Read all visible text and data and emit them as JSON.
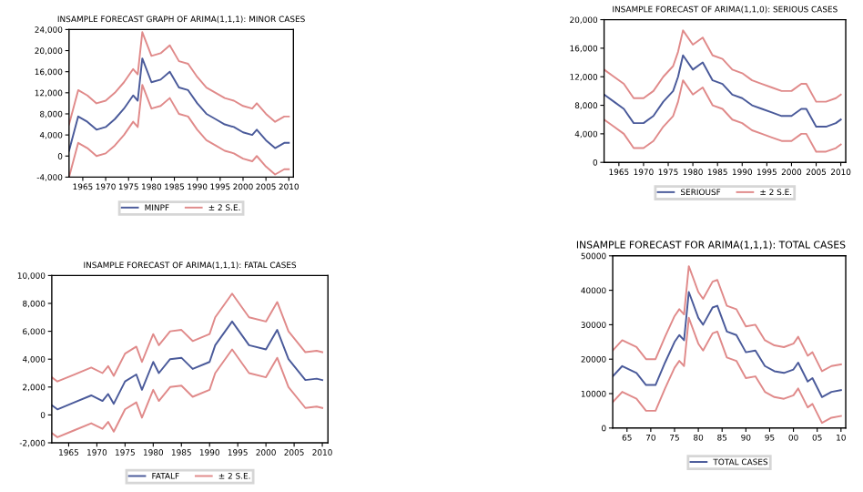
{
  "chart_data": [
    {
      "type": "line",
      "title": "INSAMPLE FORECAST GRAPH OF ARIMA(1,1,1): MINOR CASES",
      "x": [
        1962,
        1964,
        1966,
        1968,
        1970,
        1972,
        1974,
        1976,
        1977,
        1978,
        1980,
        1982,
        1984,
        1986,
        1988,
        1990,
        1992,
        1994,
        1996,
        1998,
        2000,
        2002,
        2003,
        2005,
        2007,
        2009,
        2010
      ],
      "series": [
        {
          "name": "MINPF",
          "color": "#4a5a9a",
          "values": [
            1000,
            7500,
            6500,
            5000,
            5500,
            7000,
            9000,
            11500,
            10500,
            18500,
            14000,
            14500,
            16000,
            13000,
            12500,
            10000,
            8000,
            7000,
            6000,
            5500,
            4500,
            4000,
            5000,
            3000,
            1500,
            2500,
            2500
          ]
        },
        {
          "name": "± 2 S.E.",
          "color": "#e08a8a",
          "values": [
            6000,
            12500,
            11500,
            10000,
            10500,
            12000,
            14000,
            16500,
            15500,
            23500,
            19000,
            19500,
            21000,
            18000,
            17500,
            15000,
            13000,
            12000,
            11000,
            10500,
            9500,
            9000,
            10000,
            8000,
            6500,
            7500,
            7500
          ]
        },
        {
          "color": "#e08a8a",
          "values": [
            -4000,
            2500,
            1500,
            0,
            500,
            2000,
            4000,
            6500,
            5500,
            13500,
            9000,
            9500,
            11000,
            8000,
            7500,
            5000,
            3000,
            2000,
            1000,
            500,
            -500,
            -1000,
            0,
            -2000,
            -3500,
            -2500,
            -2500
          ]
        }
      ],
      "xlim": [
        1962,
        2011
      ],
      "xticks": [
        1965,
        1970,
        1975,
        1980,
        1985,
        1990,
        1995,
        2000,
        2005,
        2010
      ],
      "ylim": [
        -4000,
        24000
      ],
      "yticks": [
        {
          "value": -4000,
          "label": "-4,000"
        },
        0,
        {
          "value": 4000,
          "label": "4,000"
        },
        {
          "value": 8000,
          "label": "8,000"
        },
        {
          "value": 12000,
          "label": "12,000"
        },
        {
          "value": 16000,
          "label": "16,000"
        },
        {
          "value": 20000,
          "label": "20,000"
        },
        {
          "value": 24000,
          "label": "24,000"
        }
      ],
      "legend": "bottom",
      "grid": false
    },
    {
      "type": "line",
      "title": "INSAMPLE FORECAST OF ARIMA(1,1,0): SERIOUS CASES",
      "x": [
        1962,
        1964,
        1966,
        1968,
        1970,
        1972,
        1974,
        1976,
        1977,
        1978,
        1980,
        1982,
        1984,
        1986,
        1988,
        1990,
        1992,
        1994,
        1996,
        1998,
        2000,
        2002,
        2003,
        2005,
        2007,
        2009,
        2010
      ],
      "series": [
        {
          "name": "SERIOUSF",
          "color": "#4a5a9a",
          "values": [
            9500,
            8500,
            7500,
            5500,
            5500,
            6500,
            8500,
            10000,
            12000,
            15000,
            13000,
            14000,
            11500,
            11000,
            9500,
            9000,
            8000,
            7500,
            7000,
            6500,
            6500,
            7500,
            7500,
            5000,
            5000,
            5500,
            6000
          ]
        },
        {
          "name": "± 2 S.E.",
          "color": "#e08a8a",
          "values": [
            13000,
            12000,
            11000,
            9000,
            9000,
            10000,
            12000,
            13500,
            15500,
            18500,
            16500,
            17500,
            15000,
            14500,
            13000,
            12500,
            11500,
            11000,
            10500,
            10000,
            10000,
            11000,
            11000,
            8500,
            8500,
            9000,
            9500
          ]
        },
        {
          "color": "#e08a8a",
          "values": [
            6000,
            5000,
            4000,
            2000,
            2000,
            3000,
            5000,
            6500,
            8500,
            11500,
            9500,
            10500,
            8000,
            7500,
            6000,
            5500,
            4500,
            4000,
            3500,
            3000,
            3000,
            4000,
            4000,
            1500,
            1500,
            2000,
            2500
          ]
        }
      ],
      "xlim": [
        1962,
        2011
      ],
      "xticks": [
        1965,
        1970,
        1975,
        1980,
        1985,
        1990,
        1995,
        2000,
        2005,
        2010
      ],
      "ylim": [
        0,
        20000
      ],
      "yticks": [
        0,
        {
          "value": 4000,
          "label": "4,000"
        },
        {
          "value": 8000,
          "label": "8,000"
        },
        {
          "value": 12000,
          "label": "12,000"
        },
        {
          "value": 16000,
          "label": "16,000"
        },
        {
          "value": 20000,
          "label": "20,000"
        }
      ],
      "legend": "bottom",
      "grid": false
    },
    {
      "type": "line",
      "title": "INSAMPLE FORECAST OF ARIMA(1,1,1): FATAL CASES",
      "x": [
        1962,
        1963,
        1966,
        1969,
        1971,
        1972,
        1973,
        1975,
        1977,
        1978,
        1980,
        1981,
        1983,
        1985,
        1987,
        1990,
        1991,
        1994,
        1997,
        2000,
        2002,
        2004,
        2007,
        2009,
        2010
      ],
      "series": [
        {
          "name": "FATALF",
          "color": "#4a5a9a",
          "values": [
            700,
            400,
            900,
            1400,
            1000,
            1500,
            800,
            2400,
            2900,
            1800,
            3800,
            3000,
            4000,
            4100,
            3300,
            3800,
            5000,
            6700,
            5000,
            4700,
            6100,
            4000,
            2500,
            2600,
            2500
          ]
        },
        {
          "name": "± 2 S.E.",
          "color": "#e08a8a",
          "values": [
            2700,
            2400,
            2900,
            3400,
            3000,
            3500,
            2800,
            4400,
            4900,
            3800,
            5800,
            5000,
            6000,
            6100,
            5300,
            5800,
            7000,
            8700,
            7000,
            6700,
            8100,
            6000,
            4500,
            4600,
            4500
          ]
        },
        {
          "color": "#e08a8a",
          "values": [
            -1300,
            -1600,
            -1100,
            -600,
            -1000,
            -500,
            -1200,
            400,
            900,
            -200,
            1800,
            1000,
            2000,
            2100,
            1300,
            1800,
            3000,
            4700,
            3000,
            2700,
            4100,
            2000,
            500,
            600,
            500
          ]
        }
      ],
      "xlim": [
        1962,
        2011
      ],
      "xticks": [
        1965,
        1970,
        1975,
        1980,
        1985,
        1990,
        1995,
        2000,
        2005,
        2010
      ],
      "ylim": [
        -2000,
        10000
      ],
      "yticks": [
        {
          "value": -2000,
          "label": "-2,000"
        },
        0,
        {
          "value": 2000,
          "label": "2,000"
        },
        {
          "value": 4000,
          "label": "4,000"
        },
        {
          "value": 6000,
          "label": "6,000"
        },
        {
          "value": 8000,
          "label": "8,000"
        },
        {
          "value": 10000,
          "label": "10,000"
        }
      ],
      "legend": "bottom",
      "grid": false
    },
    {
      "type": "line",
      "title": "INSAMPLE FORECAST FOR ARIMA(1,1,1): TOTAL CASES",
      "x": [
        1962,
        1964,
        1967,
        1969,
        1971,
        1973,
        1975,
        1976,
        1977,
        1978,
        1980,
        1981,
        1983,
        1984,
        1986,
        1988,
        1990,
        1992,
        1994,
        1996,
        1998,
        2000,
        2001,
        2003,
        2004,
        2006,
        2008,
        2010
      ],
      "series": [
        {
          "name": "TOTAL CASES",
          "color": "#4a5a9a",
          "values": [
            15000,
            18000,
            16000,
            12500,
            12500,
            19000,
            25000,
            27000,
            25500,
            39500,
            32000,
            30000,
            35000,
            35500,
            28000,
            27000,
            22000,
            22500,
            18000,
            16500,
            16000,
            17000,
            19000,
            13500,
            14500,
            9000,
            10500,
            11000
          ]
        },
        {
          "color": "#e08a8a",
          "values": [
            22500,
            25500,
            23500,
            20000,
            20000,
            26500,
            32500,
            34500,
            33000,
            47000,
            39500,
            37500,
            42500,
            43000,
            35500,
            34500,
            29500,
            30000,
            25500,
            24000,
            23500,
            24500,
            26500,
            21000,
            22000,
            16500,
            18000,
            18500
          ]
        },
        {
          "color": "#e08a8a",
          "values": [
            7500,
            10500,
            8500,
            5000,
            5000,
            11500,
            17500,
            19500,
            18000,
            32000,
            24500,
            22500,
            27500,
            28000,
            20500,
            19500,
            14500,
            15000,
            10500,
            9000,
            8500,
            9500,
            11500,
            6000,
            7000,
            1500,
            3000,
            3500
          ]
        }
      ],
      "xlim": [
        1962,
        2011
      ],
      "xticks": [
        {
          "value": 1965,
          "label": "65"
        },
        {
          "value": 1970,
          "label": "70"
        },
        {
          "value": 1975,
          "label": "75"
        },
        {
          "value": 1980,
          "label": "80"
        },
        {
          "value": 1985,
          "label": "85"
        },
        {
          "value": 1990,
          "label": "90"
        },
        {
          "value": 1995,
          "label": "95"
        },
        {
          "value": 2000,
          "label": "00"
        },
        {
          "value": 2005,
          "label": "05"
        },
        {
          "value": 2010,
          "label": "10"
        }
      ],
      "ylim": [
        0,
        50000
      ],
      "yticks": [
        0,
        10000,
        20000,
        30000,
        40000,
        50000
      ],
      "legend": "bottom",
      "grid": false
    }
  ]
}
